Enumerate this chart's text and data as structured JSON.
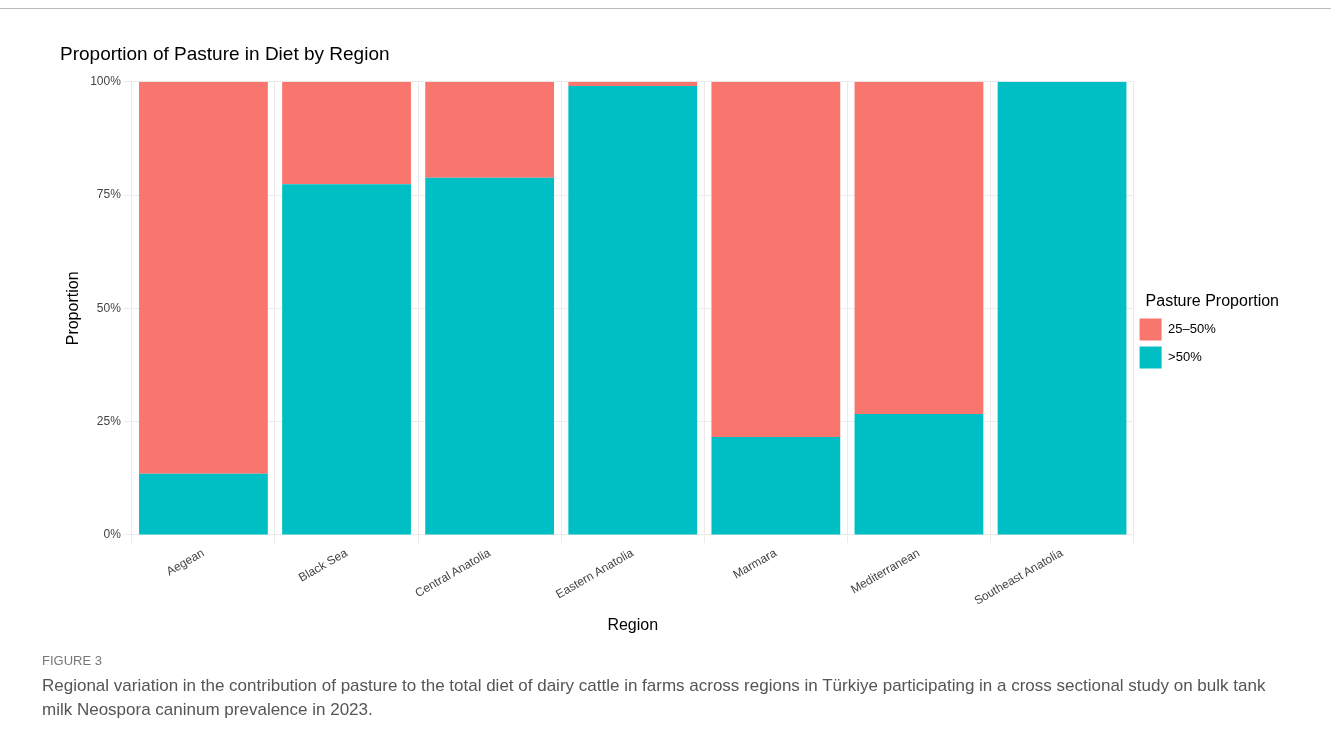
{
  "chart_data": {
    "type": "bar",
    "title": "Proportion of Pasture in Diet by Region",
    "xlabel": "Region",
    "ylabel": "Proportion",
    "legend_title": "Pasture Proportion",
    "categories": [
      "Aegean",
      "Black Sea",
      "Central Anatolia",
      "Eastern Anatolia",
      "Marmara",
      "Mediterranean",
      "Southeast Anatolia"
    ],
    "series": [
      {
        "name": ">50%",
        "color": "#00bfc4",
        "values": [
          13.5,
          77.4,
          78.8,
          99.1,
          21.6,
          26.7,
          100
        ]
      },
      {
        "name": "25–50%",
        "color": "#f8766d",
        "values": [
          86.5,
          22.6,
          21.2,
          0.9,
          78.4,
          73.3,
          0
        ]
      }
    ],
    "stacked": true,
    "ylim": [
      0,
      100
    ],
    "yticks": [
      {
        "value": 0,
        "label": "0%"
      },
      {
        "value": 25,
        "label": "25%"
      },
      {
        "value": 50,
        "label": "50%"
      },
      {
        "value": 75,
        "label": "75%"
      },
      {
        "value": 100,
        "label": "100%"
      }
    ],
    "grid": true,
    "legend": "right",
    "annotations": [
      "FIGURE 3",
      "Regional variation in the contribution of pasture to the total diet of dairy cattle in farms across regions in Türkiye participating in a cross sectional study on bulk tank milk Neospora caninum prevalence in 2023."
    ]
  }
}
